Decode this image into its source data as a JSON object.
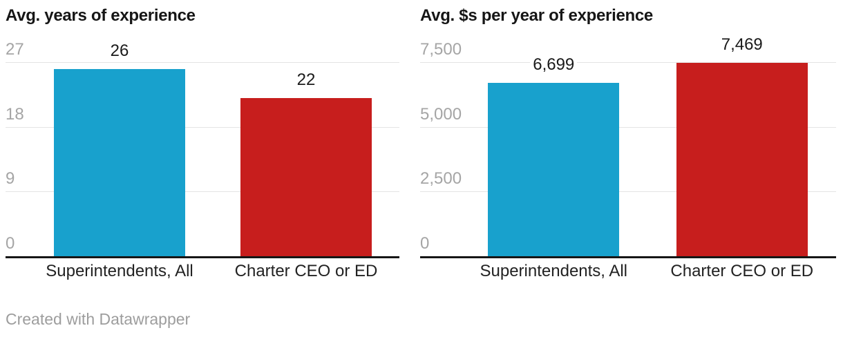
{
  "page": {
    "background": "#ffffff"
  },
  "footer": {
    "credit": "Created with Datawrapper"
  },
  "colors": {
    "blue": "#18a1cd",
    "red": "#c71e1d",
    "gridline": "#e4e4e4",
    "baseline": "#161616",
    "title_text": "#161616",
    "value_text": "#1a1a1a",
    "tick_text": "#a5a5a5",
    "category_text": "#222222",
    "footer_text": "#9d9d9d"
  },
  "chart_data": [
    {
      "type": "bar",
      "title": "Avg. years of experience",
      "categories": [
        "Superintendents, All",
        "Charter CEO or ED"
      ],
      "values": [
        26,
        22
      ],
      "value_labels": [
        "26",
        "22"
      ],
      "bar_colors": [
        "#18a1cd",
        "#c71e1d"
      ],
      "ylim": [
        0,
        27
      ],
      "yticks": [
        0,
        9,
        18,
        27
      ],
      "ytick_labels": [
        "0",
        "9",
        "18",
        "27"
      ],
      "grid": true,
      "legend": "none",
      "xlabel": "",
      "ylabel": ""
    },
    {
      "type": "bar",
      "title": "Avg. $s per year of experience",
      "categories": [
        "Superintendents, All",
        "Charter CEO or ED"
      ],
      "values": [
        6699,
        7469
      ],
      "value_labels": [
        "6,699",
        "7,469"
      ],
      "bar_colors": [
        "#18a1cd",
        "#c71e1d"
      ],
      "ylim": [
        0,
        7500
      ],
      "yticks": [
        0,
        2500,
        5000,
        7500
      ],
      "ytick_labels": [
        "0",
        "2,500",
        "5,000",
        "7,500"
      ],
      "grid": true,
      "legend": "none",
      "xlabel": "",
      "ylabel": ""
    }
  ]
}
